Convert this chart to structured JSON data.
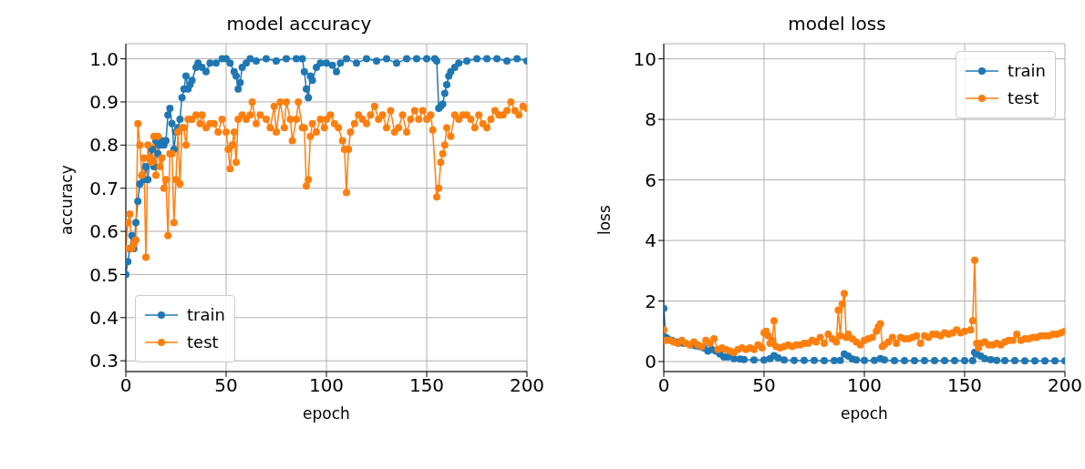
{
  "chart_data": [
    {
      "type": "line",
      "title": "model accuracy",
      "xlabel": "epoch",
      "ylabel": "accuracy",
      "xlim": [
        0,
        200
      ],
      "xticks": [
        0,
        50,
        100,
        150,
        200
      ],
      "ylim": [
        0.275,
        1.035
      ],
      "yticks": [
        0.3,
        0.4,
        0.5,
        0.6,
        0.7,
        0.8,
        0.9,
        {
          "value": 1,
          "label": "1.0"
        }
      ],
      "grid": true,
      "legend": "bottom left",
      "marker": "circle",
      "line_style": "solid",
      "series": [
        {
          "name": "train",
          "color": "#1f77b4",
          "x": [
            0,
            1,
            2,
            3,
            4,
            5,
            6,
            7,
            8,
            9,
            10,
            11,
            12,
            13,
            14,
            15,
            16,
            17,
            18,
            19,
            20,
            21,
            22,
            23,
            24,
            25,
            26,
            27,
            28,
            29,
            30,
            31,
            32,
            33,
            35,
            36,
            38,
            40,
            42,
            45,
            48,
            50,
            52,
            54,
            55,
            56,
            57,
            58,
            60,
            62,
            65,
            70,
            75,
            80,
            85,
            88,
            89,
            90,
            91,
            92,
            93,
            95,
            97,
            100,
            103,
            105,
            107,
            110,
            115,
            120,
            125,
            130,
            135,
            140,
            145,
            150,
            154,
            155,
            156,
            157,
            158,
            159,
            160,
            161,
            162,
            164,
            166,
            170,
            175,
            180,
            185,
            190,
            195,
            200
          ],
          "values": [
            0.5,
            0.53,
            0.56,
            0.59,
            0.56,
            0.62,
            0.67,
            0.71,
            0.73,
            0.72,
            0.75,
            0.72,
            0.77,
            0.79,
            0.75,
            0.81,
            0.78,
            0.8,
            0.81,
            0.8,
            0.81,
            0.87,
            0.885,
            0.85,
            0.79,
            0.83,
            0.84,
            0.86,
            0.91,
            0.93,
            0.96,
            0.93,
            0.94,
            0.95,
            0.98,
            0.99,
            0.98,
            0.97,
            0.99,
            0.99,
            1.0,
            1.0,
            0.99,
            0.97,
            0.96,
            0.93,
            0.945,
            0.98,
            0.99,
            1.0,
            0.995,
            1.0,
            0.995,
            1.0,
            1.0,
            1.0,
            0.97,
            0.93,
            0.91,
            0.96,
            0.95,
            0.98,
            0.99,
            0.99,
            0.985,
            0.97,
            0.99,
            1.0,
            0.99,
            1.0,
            0.995,
            1.0,
            0.99,
            1.0,
            1.0,
            1.0,
            1.0,
            0.995,
            0.885,
            0.89,
            0.895,
            0.92,
            0.94,
            0.96,
            0.97,
            0.98,
            0.99,
            0.995,
            1.0,
            1.0,
            1.0,
            0.995,
            1.0,
            0.995
          ]
        },
        {
          "name": "test",
          "color": "#ff7f0e",
          "x": [
            0,
            1,
            2,
            3,
            4,
            5,
            6,
            7,
            8,
            9,
            10,
            11,
            12,
            13,
            14,
            15,
            16,
            17,
            18,
            19,
            20,
            21,
            22,
            23,
            24,
            25,
            26,
            27,
            28,
            29,
            30,
            31,
            33,
            35,
            37,
            38,
            40,
            42,
            44,
            46,
            48,
            50,
            51,
            52,
            53,
            54,
            55,
            56,
            58,
            60,
            62,
            63,
            65,
            67,
            70,
            72,
            74,
            75,
            77,
            79,
            80,
            82,
            83,
            85,
            86,
            88,
            89,
            90,
            91,
            92,
            93,
            95,
            97,
            99,
            100,
            102,
            104,
            106,
            108,
            109,
            110,
            111,
            112,
            114,
            116,
            118,
            120,
            122,
            124,
            126,
            128,
            130,
            132,
            134,
            136,
            138,
            140,
            142,
            144,
            146,
            148,
            150,
            152,
            153,
            155,
            156,
            157,
            158,
            159,
            160,
            162,
            164,
            166,
            168,
            170,
            172,
            174,
            176,
            178,
            180,
            182,
            184,
            186,
            188,
            190,
            192,
            194,
            196,
            198,
            200
          ],
          "values": [
            0.56,
            0.62,
            0.64,
            0.56,
            0.57,
            0.58,
            0.85,
            0.8,
            0.73,
            0.77,
            0.54,
            0.8,
            0.77,
            0.76,
            0.82,
            0.73,
            0.82,
            0.75,
            0.77,
            0.7,
            0.72,
            0.59,
            0.78,
            0.78,
            0.62,
            0.72,
            0.83,
            0.71,
            0.84,
            0.84,
            0.8,
            0.86,
            0.86,
            0.87,
            0.85,
            0.87,
            0.84,
            0.85,
            0.85,
            0.83,
            0.86,
            0.83,
            0.79,
            0.745,
            0.8,
            0.83,
            0.76,
            0.86,
            0.87,
            0.86,
            0.87,
            0.9,
            0.85,
            0.87,
            0.86,
            0.84,
            0.89,
            0.83,
            0.9,
            0.84,
            0.9,
            0.86,
            0.81,
            0.86,
            0.9,
            0.84,
            0.84,
            0.705,
            0.72,
            0.82,
            0.85,
            0.83,
            0.86,
            0.84,
            0.86,
            0.87,
            0.85,
            0.84,
            0.81,
            0.79,
            0.69,
            0.79,
            0.83,
            0.85,
            0.87,
            0.86,
            0.85,
            0.87,
            0.89,
            0.86,
            0.87,
            0.84,
            0.88,
            0.83,
            0.84,
            0.87,
            0.83,
            0.86,
            0.88,
            0.86,
            0.88,
            0.86,
            0.87,
            0.835,
            0.68,
            0.7,
            0.76,
            0.78,
            0.8,
            0.84,
            0.82,
            0.87,
            0.86,
            0.87,
            0.87,
            0.86,
            0.84,
            0.87,
            0.85,
            0.84,
            0.86,
            0.88,
            0.87,
            0.87,
            0.88,
            0.9,
            0.88,
            0.87,
            0.89,
            0.885
          ]
        }
      ]
    },
    {
      "type": "line",
      "title": "model loss",
      "xlabel": "epoch",
      "ylabel": "loss",
      "xlim": [
        0,
        200
      ],
      "xticks": [
        0,
        50,
        100,
        150,
        200
      ],
      "ylim": [
        -0.33,
        10.5
      ],
      "yticks": [
        0,
        2,
        4,
        6,
        8,
        10
      ],
      "grid": true,
      "legend": "top right",
      "marker": "circle",
      "line_style": "solid",
      "series": [
        {
          "name": "train",
          "color": "#1f77b4",
          "x": [
            0,
            1,
            2,
            4,
            6,
            8,
            10,
            12,
            14,
            16,
            18,
            20,
            22,
            24,
            26,
            28,
            30,
            32,
            35,
            38,
            40,
            45,
            50,
            53,
            55,
            57,
            60,
            65,
            70,
            75,
            80,
            85,
            88,
            90,
            92,
            94,
            96,
            100,
            105,
            108,
            110,
            115,
            120,
            125,
            130,
            135,
            140,
            145,
            150,
            154,
            155,
            156,
            158,
            160,
            163,
            166,
            170,
            175,
            180,
            185,
            190,
            195,
            200
          ],
          "values": [
            1.75,
            0.8,
            0.75,
            0.7,
            0.65,
            0.62,
            0.6,
            null,
            0.55,
            0.52,
            0.5,
            0.45,
            0.35,
            0.4,
            0.35,
            0.25,
            0.15,
            0.15,
            0.1,
            0.08,
            0.07,
            0.05,
            0.05,
            0.1,
            0.2,
            0.12,
            0.05,
            0.04,
            0.04,
            0.04,
            0.03,
            0.03,
            0.04,
            0.25,
            0.18,
            0.08,
            0.05,
            0.04,
            0.04,
            0.1,
            0.05,
            0.03,
            0.03,
            0.03,
            0.03,
            0.03,
            0.03,
            0.03,
            0.03,
            0.03,
            0.3,
            0.25,
            0.18,
            0.1,
            0.06,
            0.04,
            0.03,
            0.03,
            0.02,
            0.02,
            0.02,
            0.02,
            0.02
          ]
        },
        {
          "name": "test",
          "color": "#ff7f0e",
          "x": [
            0,
            1,
            3,
            5,
            7,
            9,
            11,
            13,
            15,
            17,
            19,
            21,
            23,
            25,
            27,
            29,
            31,
            33,
            35,
            37,
            39,
            41,
            43,
            45,
            47,
            49,
            50,
            51,
            52,
            53,
            54,
            55,
            56,
            58,
            60,
            62,
            64,
            66,
            68,
            70,
            72,
            74,
            76,
            78,
            80,
            82,
            84,
            86,
            87,
            88,
            89,
            90,
            91,
            92,
            94,
            96,
            98,
            100,
            102,
            104,
            106,
            107,
            108,
            109,
            110,
            112,
            114,
            116,
            118,
            120,
            122,
            124,
            126,
            128,
            130,
            132,
            134,
            136,
            138,
            140,
            142,
            144,
            146,
            148,
            150,
            153,
            154,
            155,
            156,
            157,
            158,
            160,
            162,
            164,
            166,
            168,
            170,
            172,
            174,
            176,
            178,
            180,
            182,
            184,
            186,
            188,
            190,
            192,
            194,
            196,
            198,
            200
          ],
          "values": [
            1.05,
            0.7,
            0.7,
            0.65,
            0.6,
            0.7,
            0.6,
            0.55,
            0.65,
            0.55,
            0.5,
            0.7,
            0.6,
            0.75,
            0.4,
            0.45,
            0.4,
            0.35,
            0.3,
            0.4,
            0.45,
            0.4,
            0.45,
            0.4,
            0.55,
            0.45,
            0.95,
            1.0,
            0.85,
            0.6,
            0.7,
            1.35,
            0.5,
            0.45,
            0.5,
            0.55,
            0.5,
            0.55,
            0.55,
            0.6,
            0.6,
            0.7,
            0.65,
            0.8,
            0.6,
            0.9,
            0.75,
            0.65,
            1.7,
            0.85,
            1.9,
            2.25,
            0.8,
            0.9,
            0.75,
            0.65,
            0.55,
            0.7,
            0.75,
            0.8,
            1.0,
            1.15,
            1.25,
            0.5,
            0.55,
            0.65,
            0.8,
            0.6,
            0.8,
            0.75,
            0.75,
            0.8,
            0.85,
            0.6,
            0.85,
            0.8,
            0.9,
            0.9,
            0.85,
            0.95,
            0.9,
            0.95,
            1.05,
            0.95,
            1.0,
            1.05,
            1.35,
            3.35,
            0.6,
            0.45,
            0.6,
            0.65,
            0.55,
            0.55,
            0.6,
            0.55,
            0.65,
            0.7,
            0.7,
            0.9,
            0.7,
            0.75,
            0.75,
            0.8,
            0.8,
            0.85,
            0.85,
            0.85,
            0.9,
            0.9,
            0.95,
            1.0
          ]
        }
      ]
    }
  ]
}
